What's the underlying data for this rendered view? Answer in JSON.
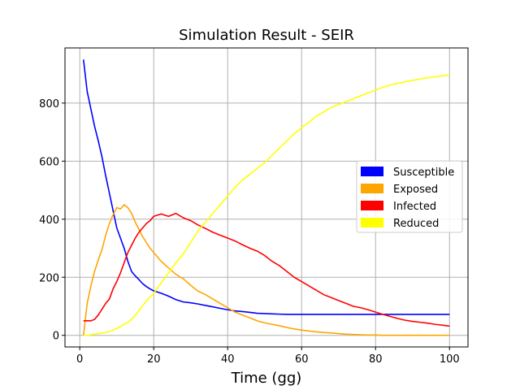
{
  "chart_data": {
    "type": "line",
    "title": "Simulation Result - SEIR",
    "xlabel": "Time (gg)",
    "ylabel": "",
    "xlim": [
      -4,
      105
    ],
    "ylim": [
      -40,
      990
    ],
    "xticks": [
      0,
      20,
      40,
      60,
      80,
      100
    ],
    "yticks": [
      0,
      200,
      400,
      600,
      800
    ],
    "grid": true,
    "legend_position": "center-right",
    "x": [
      1,
      2,
      3,
      4,
      5,
      6,
      7,
      8,
      9,
      10,
      11,
      12,
      13,
      14,
      15,
      16,
      17,
      18,
      19,
      20,
      22,
      24,
      26,
      28,
      30,
      32,
      34,
      36,
      38,
      40,
      42,
      44,
      46,
      48,
      50,
      52,
      54,
      56,
      58,
      60,
      62,
      64,
      66,
      68,
      70,
      72,
      74,
      76,
      78,
      80,
      82,
      84,
      86,
      88,
      90,
      92,
      94,
      96,
      98,
      100
    ],
    "series": [
      {
        "name": "Susceptible",
        "color": "#0000ff",
        "values": [
          950,
          840,
          780,
          720,
          670,
          615,
          550,
          490,
          430,
          370,
          335,
          300,
          255,
          220,
          205,
          192,
          178,
          168,
          160,
          153,
          145,
          135,
          123,
          115,
          112,
          108,
          103,
          98,
          93,
          88,
          84,
          82,
          79,
          76,
          75,
          74,
          73,
          72,
          72,
          72,
          72,
          72,
          72,
          72,
          72,
          72,
          72,
          72,
          72,
          72,
          72,
          72,
          72,
          72,
          72,
          72,
          72,
          72,
          72,
          72
        ]
      },
      {
        "name": "Exposed",
        "color": "#ffa500",
        "values": [
          0,
          110,
          170,
          220,
          260,
          295,
          345,
          385,
          415,
          440,
          435,
          450,
          440,
          420,
          390,
          365,
          340,
          320,
          300,
          285,
          255,
          232,
          210,
          195,
          172,
          152,
          140,
          125,
          110,
          95,
          80,
          70,
          60,
          50,
          43,
          38,
          33,
          27,
          22,
          18,
          15,
          12,
          10,
          8,
          6,
          4,
          3,
          2,
          1,
          1,
          0,
          0,
          0,
          0,
          0,
          0,
          0,
          0,
          0,
          0
        ]
      },
      {
        "name": "Infected",
        "color": "#ff0000",
        "values": [
          50,
          50,
          50,
          55,
          70,
          90,
          110,
          125,
          160,
          185,
          215,
          250,
          285,
          310,
          335,
          355,
          370,
          385,
          395,
          410,
          418,
          410,
          420,
          405,
          395,
          380,
          368,
          355,
          345,
          335,
          325,
          312,
          300,
          290,
          275,
          255,
          240,
          220,
          200,
          185,
          170,
          155,
          140,
          130,
          120,
          110,
          100,
          95,
          88,
          80,
          72,
          65,
          58,
          52,
          48,
          45,
          42,
          38,
          35,
          32
        ]
      },
      {
        "name": "Reduced",
        "color": "#ffff00",
        "values": [
          0,
          0,
          2,
          4,
          6,
          8,
          10,
          13,
          18,
          24,
          30,
          38,
          45,
          55,
          68,
          85,
          102,
          118,
          132,
          145,
          180,
          215,
          250,
          280,
          320,
          360,
          390,
          420,
          450,
          480,
          510,
          535,
          555,
          575,
          595,
          620,
          645,
          670,
          695,
          715,
          735,
          755,
          770,
          785,
          795,
          805,
          815,
          825,
          835,
          845,
          855,
          862,
          868,
          873,
          878,
          883,
          887,
          891,
          894,
          897
        ]
      }
    ]
  }
}
